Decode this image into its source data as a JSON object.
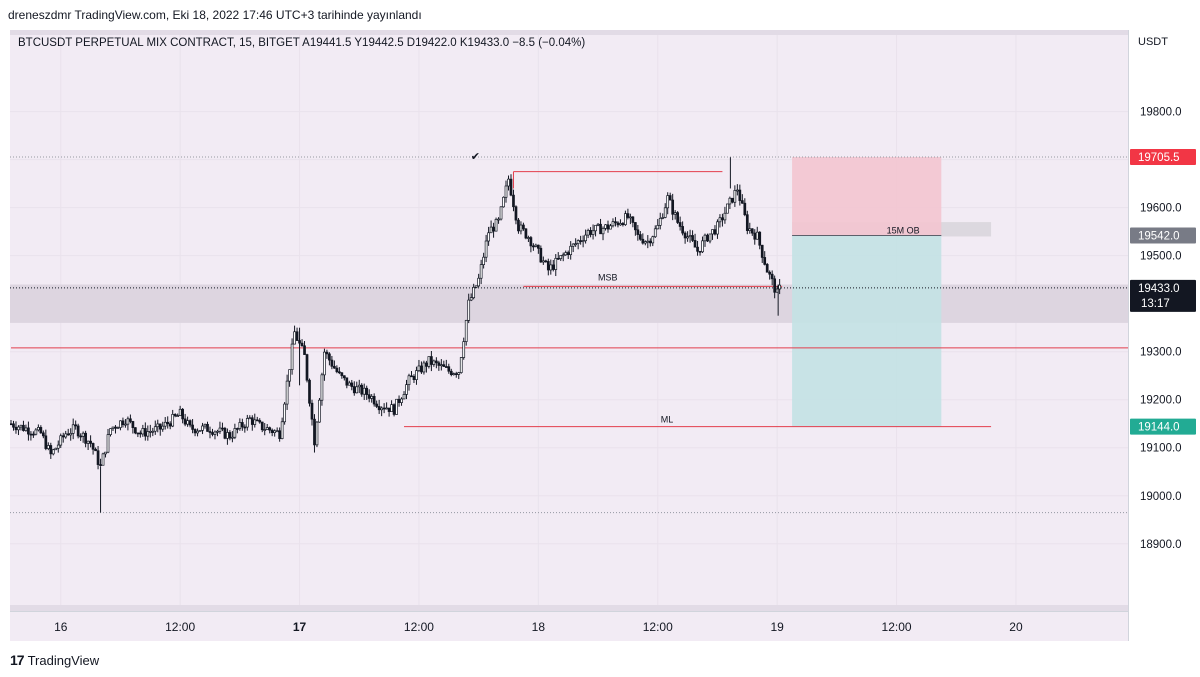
{
  "header": {
    "publish_text": "dreneszdmr TradingView.com, Eki 18, 2022 17:46 UTC+3 tarihinde yayınlandı"
  },
  "legend": {
    "text": "BTCUSDT PERPETUAL MIX CONTRACT, 15, BITGET   A19441.5   Y19442.5   D19422.0   K19433.0   −8.5  (−0.04%)"
  },
  "currency": "USDT",
  "footer": {
    "logo": "17",
    "brand": "TradingView"
  },
  "colors": {
    "up": "#131722",
    "down": "#131722",
    "stop_zone": "#f3c5d0",
    "target_zone": "#c3e2e4",
    "demand_zone": "#ddd5e0",
    "red_line": "#e33e4c",
    "ob_zone": "#dcd8df",
    "stop_badge": "#f23645",
    "entry_badge": "#787b86",
    "target_badge": "#22ab94",
    "last_badge": "#131722"
  },
  "chart_data": {
    "type": "candlestick",
    "symbol": "BTCUSDT PERPETUAL MIX CONTRACT",
    "interval": "15",
    "exchange": "BITGET",
    "ohlc_last": {
      "open": 19441.5,
      "high": 19442.5,
      "low": 19422.0,
      "close": 19433.0,
      "change": -8.5,
      "change_pct": -0.04
    },
    "ylim": [
      18760,
      19970
    ],
    "y_ticks": [
      "19800.0",
      "19700.0",
      "19600.0",
      "19500.0",
      "19400.0",
      "19300.0",
      "19200.0",
      "19100.0",
      "19000.0",
      "18900.0"
    ],
    "x_ticks": [
      "16",
      "12:00",
      "17",
      "12:00",
      "18",
      "12:00",
      "19",
      "12:00",
      "20"
    ],
    "x_ticks_bold": [
      false,
      false,
      true,
      false,
      false,
      false,
      false,
      false,
      false
    ],
    "x_range_hours": [
      "2022-10-15 19:00",
      "2022-10-20 17:00"
    ],
    "price_path_hours": [
      [
        0,
        19150
      ],
      [
        3,
        19130
      ],
      [
        4,
        19085
      ],
      [
        5.5,
        19130
      ],
      [
        6.5,
        19140
      ],
      [
        8,
        19110
      ],
      [
        9,
        19060
      ],
      [
        10,
        19140
      ],
      [
        11.5,
        19160
      ],
      [
        13,
        19130
      ],
      [
        15,
        19140
      ],
      [
        17,
        19170
      ],
      [
        18,
        19140
      ],
      [
        20,
        19140
      ],
      [
        22,
        19125
      ],
      [
        24,
        19160
      ],
      [
        25,
        19145
      ],
      [
        27,
        19130
      ],
      [
        28.5,
        19340
      ],
      [
        29.5,
        19290
      ],
      [
        30.5,
        19115
      ],
      [
        31.5,
        19300
      ],
      [
        33,
        19250
      ],
      [
        34,
        19230
      ],
      [
        36,
        19210
      ],
      [
        37,
        19190
      ],
      [
        38.5,
        19180
      ],
      [
        40,
        19240
      ],
      [
        42,
        19280
      ],
      [
        44,
        19260
      ],
      [
        45,
        19260
      ],
      [
        46,
        19400
      ],
      [
        47,
        19450
      ],
      [
        48,
        19550
      ],
      [
        49,
        19570
      ],
      [
        50,
        19660
      ],
      [
        51,
        19560
      ],
      [
        52,
        19540
      ],
      [
        54,
        19470
      ],
      [
        56,
        19510
      ],
      [
        58,
        19550
      ],
      [
        60,
        19560
      ],
      [
        62,
        19580
      ],
      [
        63,
        19540
      ],
      [
        64,
        19530
      ],
      [
        65,
        19560
      ],
      [
        66,
        19620
      ],
      [
        67,
        19570
      ],
      [
        68,
        19540
      ],
      [
        69,
        19510
      ],
      [
        70,
        19540
      ],
      [
        71,
        19560
      ],
      [
        72,
        19600
      ],
      [
        73,
        19640
      ],
      [
        74,
        19560
      ],
      [
        75,
        19540
      ],
      [
        76,
        19470
      ],
      [
        77,
        19420
      ],
      [
        77.3,
        19433
      ]
    ],
    "zones": {
      "stop": {
        "top": 19705.5,
        "bottom": 19542.0,
        "from_h": 78.5,
        "to_h": 93.5
      },
      "target": {
        "top": 19542.0,
        "bottom": 19144.0,
        "from_h": 78.5,
        "to_h": 93.5
      },
      "demand": {
        "top": 19440,
        "bottom": 19360
      },
      "order_block": {
        "top": 19570,
        "bottom": 19540,
        "from_h": 78.5,
        "to_h": 98.5
      }
    },
    "levels": [
      {
        "name": "high_box_top",
        "price": 19675,
        "from_h": 50.5,
        "to_h": 71.5
      },
      {
        "name": "MSB",
        "price": 19436,
        "from_h": 51.5,
        "to_h": 77.5,
        "label": "MSB"
      },
      {
        "name": "ML",
        "price": 19144,
        "from_h": 39.5,
        "to_h": 98.5,
        "label": "ML"
      },
      {
        "name": "support",
        "price": 19308,
        "from_h": 0,
        "to_h": 135
      }
    ],
    "dotted_levels": [
      19705.5,
      18965
    ],
    "annotations": {
      "ob_label": "15M OB",
      "msb_label": "MSB",
      "ml_label": "ML",
      "check_mark": "✔"
    },
    "price_badges": [
      {
        "price": 19705.5,
        "label": "19705.5",
        "color": "stop"
      },
      {
        "price": 19542.0,
        "label": "19542.0",
        "color": "entry"
      },
      {
        "price": 19433.0,
        "label": "19433.0",
        "sub": "13:17",
        "color": "last"
      },
      {
        "price": 19144.0,
        "label": "19144.0",
        "color": "target"
      }
    ]
  }
}
